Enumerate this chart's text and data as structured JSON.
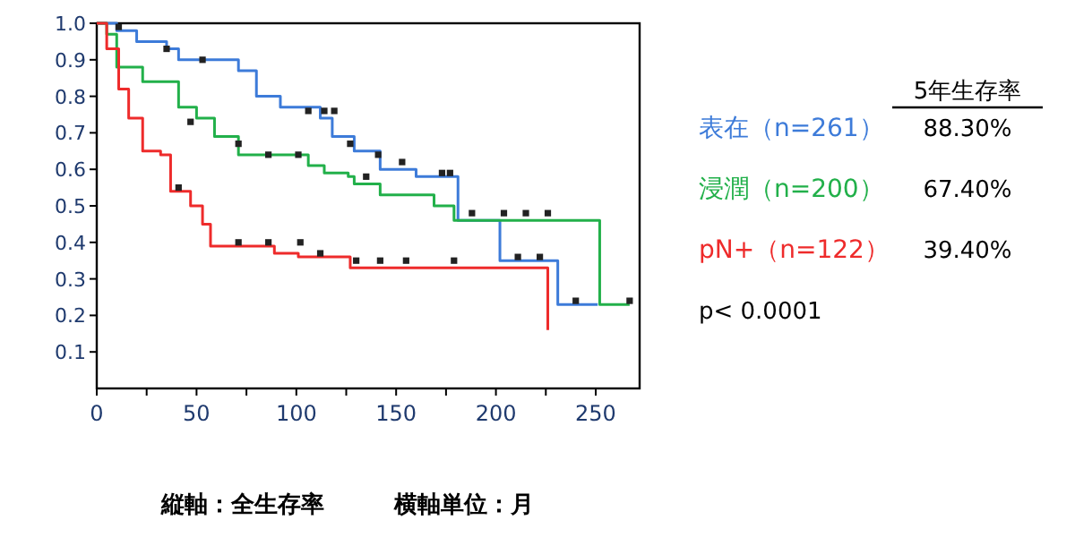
{
  "chart_data": {
    "type": "step",
    "xlim": [
      0,
      272
    ],
    "ylim": [
      0,
      1.0
    ],
    "xticks": [
      0,
      {
        "value": 25,
        "label": null
      },
      50,
      {
        "value": 75,
        "label": null
      },
      100,
      {
        "value": 125,
        "label": null
      },
      150,
      {
        "value": 175,
        "label": null
      },
      200,
      {
        "value": 225,
        "label": null
      },
      250
    ],
    "yticks": [
      0.1,
      0.2,
      0.3,
      0.4,
      0.5,
      0.6,
      0.7,
      0.8,
      0.9,
      {
        "value": 1.0,
        "label": "1.0"
      }
    ],
    "grid": false,
    "legend": "right",
    "legend_title": "5年生存率",
    "series": [
      {
        "name": "表在（n=261）",
        "color": "#3d7bd9",
        "x": [
          0,
          10,
          20,
          35,
          41,
          71,
          80,
          92,
          112,
          118,
          129,
          142,
          160,
          181,
          202,
          231,
          251
        ],
        "values": [
          1.0,
          0.98,
          0.95,
          0.93,
          0.9,
          0.87,
          0.8,
          0.77,
          0.74,
          0.69,
          0.65,
          0.6,
          0.58,
          0.46,
          0.35,
          0.23,
          0.23
        ]
      },
      {
        "name": "浸潤（n=200）",
        "color": "#22b04a",
        "x": [
          0,
          5,
          10,
          23,
          41,
          50,
          59,
          71,
          106,
          114,
          126,
          129,
          142,
          169,
          179,
          252,
          267
        ],
        "values": [
          1.0,
          0.97,
          0.88,
          0.84,
          0.77,
          0.74,
          0.69,
          0.64,
          0.61,
          0.59,
          0.58,
          0.56,
          0.53,
          0.5,
          0.46,
          0.23,
          0.23
        ]
      },
      {
        "name": "pN+（n=122）",
        "color": "#ee2b2b",
        "x": [
          0,
          5,
          11,
          16,
          23,
          32,
          37,
          47,
          53,
          57,
          89,
          101,
          127,
          226
        ],
        "values": [
          1.0,
          0.93,
          0.82,
          0.74,
          0.65,
          0.64,
          0.54,
          0.5,
          0.45,
          0.39,
          0.37,
          0.36,
          0.33,
          0.16
        ]
      },
      {
        "type": "scatter",
        "marker": "square",
        "color": "#222222",
        "x": [
          11,
          35,
          53,
          47,
          41,
          71,
          86,
          101,
          106,
          119,
          114,
          127,
          141,
          153,
          173,
          177,
          188,
          204,
          215,
          226,
          240,
          267,
          135,
          71,
          86,
          102,
          112,
          130,
          142,
          155,
          179,
          211,
          222
        ],
        "values": [
          0.99,
          0.93,
          0.9,
          0.73,
          0.55,
          0.67,
          0.64,
          0.64,
          0.76,
          0.76,
          0.76,
          0.67,
          0.64,
          0.62,
          0.59,
          0.59,
          0.48,
          0.48,
          0.48,
          0.48,
          0.24,
          0.24,
          0.58,
          0.4,
          0.4,
          0.4,
          0.37,
          0.35,
          0.35,
          0.35,
          0.35,
          0.36,
          0.36
        ]
      }
    ],
    "annotations": [
      "88.30%",
      "67.40%",
      "39.40%",
      "p< 0.0001",
      "縦軸：全生存率",
      "横軸単位：月"
    ]
  }
}
